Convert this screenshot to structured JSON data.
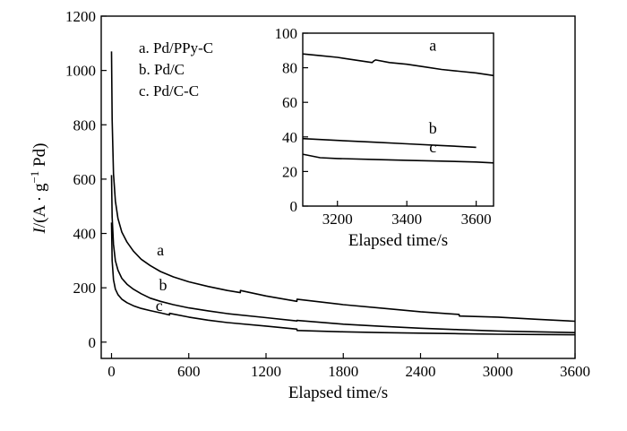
{
  "chart_data": [
    {
      "type": "line",
      "xlabel": "Elapsed time/s",
      "ylabel_parts": [
        "I",
        "/(A · g",
        "−1",
        " Pd)"
      ],
      "xlim": [
        -80,
        3600
      ],
      "ylim": [
        -60,
        1200
      ],
      "xticks": [
        0,
        600,
        1200,
        1800,
        2400,
        3000,
        3600
      ],
      "yticks": [
        0,
        200,
        400,
        600,
        800,
        1000,
        1200
      ],
      "legend": [
        "a. Pd/PPy-C",
        "b. Pd/C",
        "c. Pd/C-C"
      ],
      "series": [
        {
          "name": "a",
          "x": [
            0,
            5,
            15,
            30,
            50,
            80,
            120,
            170,
            230,
            300,
            380,
            480,
            600,
            750,
            900,
            1000,
            1001,
            1200,
            1440,
            1441,
            1800,
            2100,
            2400,
            2700,
            2701,
            3000,
            3300,
            3600
          ],
          "y": [
            1070,
            820,
            620,
            520,
            455,
            405,
            368,
            335,
            305,
            282,
            260,
            240,
            222,
            205,
            190,
            182,
            190,
            170,
            150,
            158,
            138,
            125,
            112,
            102,
            96,
            92,
            84,
            77
          ]
        },
        {
          "name": "b",
          "x": [
            0,
            5,
            15,
            30,
            50,
            80,
            120,
            170,
            230,
            300,
            380,
            480,
            600,
            750,
            900,
            1200,
            1440,
            1441,
            1800,
            2100,
            2400,
            2700,
            3000,
            3300,
            3600
          ],
          "y": [
            615,
            460,
            360,
            300,
            265,
            235,
            213,
            195,
            178,
            162,
            150,
            138,
            126,
            115,
            105,
            90,
            78,
            80,
            66,
            58,
            51,
            46,
            41,
            38,
            35
          ]
        },
        {
          "name": "c",
          "x": [
            0,
            5,
            15,
            30,
            50,
            80,
            120,
            170,
            230,
            300,
            380,
            450,
            451,
            600,
            750,
            900,
            1200,
            1440,
            1441,
            1800,
            2100,
            2400,
            2700,
            3000,
            3300,
            3600
          ],
          "y": [
            440,
            300,
            230,
            195,
            175,
            158,
            145,
            134,
            124,
            116,
            108,
            100,
            106,
            92,
            81,
            72,
            59,
            48,
            43,
            38,
            35,
            33,
            31,
            29,
            28,
            27
          ]
        }
      ],
      "curve_labels": [
        {
          "text": "a",
          "x": 380,
          "y": 320
        },
        {
          "text": "b",
          "x": 400,
          "y": 190
        },
        {
          "text": "c",
          "x": 370,
          "y": 115
        }
      ]
    },
    {
      "type": "line",
      "xlabel": "Elapsed time/s",
      "xlim": [
        3100,
        3650
      ],
      "ylim": [
        0,
        100
      ],
      "xticks": [
        3200,
        3400,
        3600
      ],
      "yticks": [
        0,
        20,
        40,
        60,
        80,
        100
      ],
      "series": [
        {
          "name": "a",
          "x": [
            3100,
            3150,
            3200,
            3250,
            3300,
            3305,
            3310,
            3350,
            3400,
            3450,
            3500,
            3550,
            3600,
            3650
          ],
          "y": [
            88,
            87,
            86,
            84.5,
            83,
            84,
            84.5,
            83,
            82,
            80.5,
            79,
            78,
            77,
            75.5
          ]
        },
        {
          "name": "b",
          "x": [
            3100,
            3200,
            3300,
            3400,
            3500,
            3600
          ],
          "y": [
            39,
            38,
            37,
            36,
            35,
            34
          ]
        },
        {
          "name": "c",
          "x": [
            3100,
            3150,
            3200,
            3300,
            3400,
            3500,
            3600,
            3650
          ],
          "y": [
            30,
            28,
            27.5,
            27,
            26.5,
            26,
            25.5,
            25
          ]
        }
      ],
      "curve_labels": [
        {
          "text": "a",
          "x": 3475,
          "y": 90
        },
        {
          "text": "b",
          "x": 3475,
          "y": 42
        },
        {
          "text": "c",
          "x": 3475,
          "y": 31
        }
      ]
    }
  ]
}
